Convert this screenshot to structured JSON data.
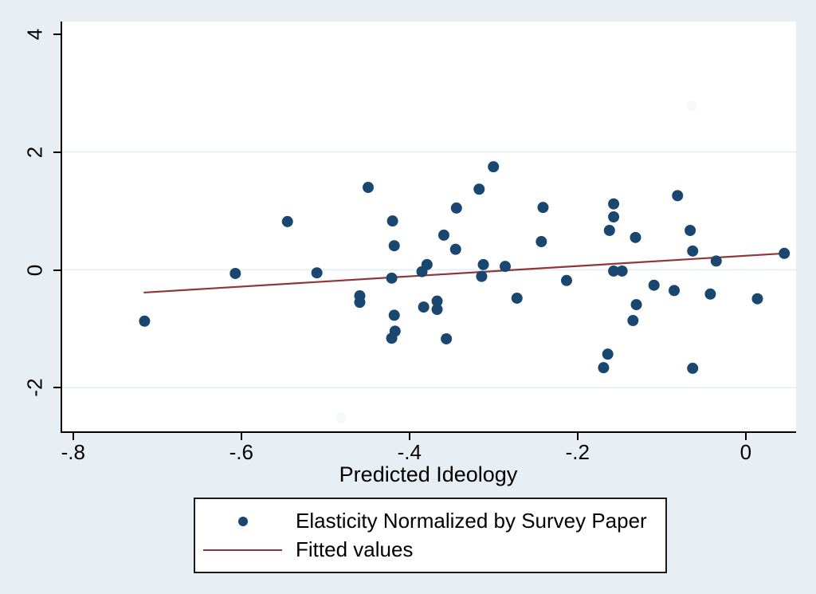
{
  "colors": {
    "background": "#e8eff4",
    "plot_background": "#ffffff",
    "grid": "#e0ebf2",
    "axis": "#000000",
    "marker": "#1a476f",
    "fit_line": "#90353b",
    "ghost": "#f7fafb"
  },
  "chart_data": {
    "type": "scatter",
    "title": "",
    "xlabel": "Predicted Ideology",
    "ylabel": "",
    "xlim": [
      -0.815,
      0.058
    ],
    "ylim": [
      -2.74,
      4.215
    ],
    "x_ticks": [
      -0.8,
      -0.6,
      -0.4,
      -0.2,
      0
    ],
    "x_tick_labels": [
      "-.8",
      "-.6",
      "-.4",
      "-.2",
      "0"
    ],
    "y_ticks": [
      4,
      2,
      0,
      -2
    ],
    "y_tick_labels": [
      "4",
      "2",
      "0",
      "-2"
    ],
    "gridlines_y": [
      2,
      0,
      -2
    ],
    "grid": true,
    "legend_position": "bottom-outside",
    "series": [
      {
        "name": "Elasticity Normalized by Survey Paper",
        "type": "scatter",
        "color": "#1a476f",
        "points": [
          [
            -0.717,
            -0.87
          ],
          [
            -0.609,
            -0.06
          ],
          [
            -0.547,
            0.82
          ],
          [
            -0.512,
            -0.05
          ],
          [
            -0.451,
            1.4
          ],
          [
            -0.461,
            -0.44
          ],
          [
            -0.461,
            -0.55
          ],
          [
            -0.422,
            0.83
          ],
          [
            -0.42,
            0.41
          ],
          [
            -0.423,
            -0.14
          ],
          [
            -0.42,
            -0.77
          ],
          [
            -0.419,
            -1.04
          ],
          [
            -0.423,
            -1.16
          ],
          [
            -0.381,
            0.09
          ],
          [
            -0.387,
            -0.03
          ],
          [
            -0.385,
            -0.63
          ],
          [
            -0.369,
            -0.53
          ],
          [
            -0.369,
            -0.67
          ],
          [
            -0.358,
            -1.17
          ],
          [
            -0.361,
            0.59
          ],
          [
            -0.347,
            0.35
          ],
          [
            -0.346,
            1.05
          ],
          [
            -0.319,
            1.37
          ],
          [
            -0.314,
            0.09
          ],
          [
            -0.316,
            -0.11
          ],
          [
            -0.302,
            1.75
          ],
          [
            -0.288,
            0.06
          ],
          [
            -0.274,
            -0.48
          ],
          [
            -0.243,
            1.06
          ],
          [
            -0.245,
            0.48
          ],
          [
            -0.215,
            -0.18
          ],
          [
            -0.166,
            -1.43
          ],
          [
            -0.171,
            -1.66
          ],
          [
            -0.164,
            0.67
          ],
          [
            -0.159,
            1.12
          ],
          [
            -0.159,
            0.9
          ],
          [
            -0.159,
            -0.02
          ],
          [
            -0.149,
            -0.02
          ],
          [
            -0.133,
            0.55
          ],
          [
            -0.132,
            -0.59
          ],
          [
            -0.136,
            -0.86
          ],
          [
            -0.111,
            -0.26
          ],
          [
            -0.087,
            -0.35
          ],
          [
            -0.083,
            1.26
          ],
          [
            -0.068,
            0.67
          ],
          [
            -0.065,
            -1.67
          ],
          [
            -0.065,
            0.32
          ],
          [
            -0.044,
            -0.41
          ],
          [
            -0.037,
            0.15
          ],
          [
            0.012,
            -0.49
          ],
          [
            0.044,
            0.28
          ]
        ]
      },
      {
        "name": "Fitted values",
        "type": "line",
        "color": "#90353b",
        "points": [
          [
            -0.718,
            -0.385
          ],
          [
            0.044,
            0.28
          ]
        ]
      }
    ],
    "ghost_points": {
      "color": "#f7fafb",
      "points": [
        [
          -0.066,
          2.79
        ],
        [
          -0.483,
          -2.51
        ]
      ]
    }
  }
}
